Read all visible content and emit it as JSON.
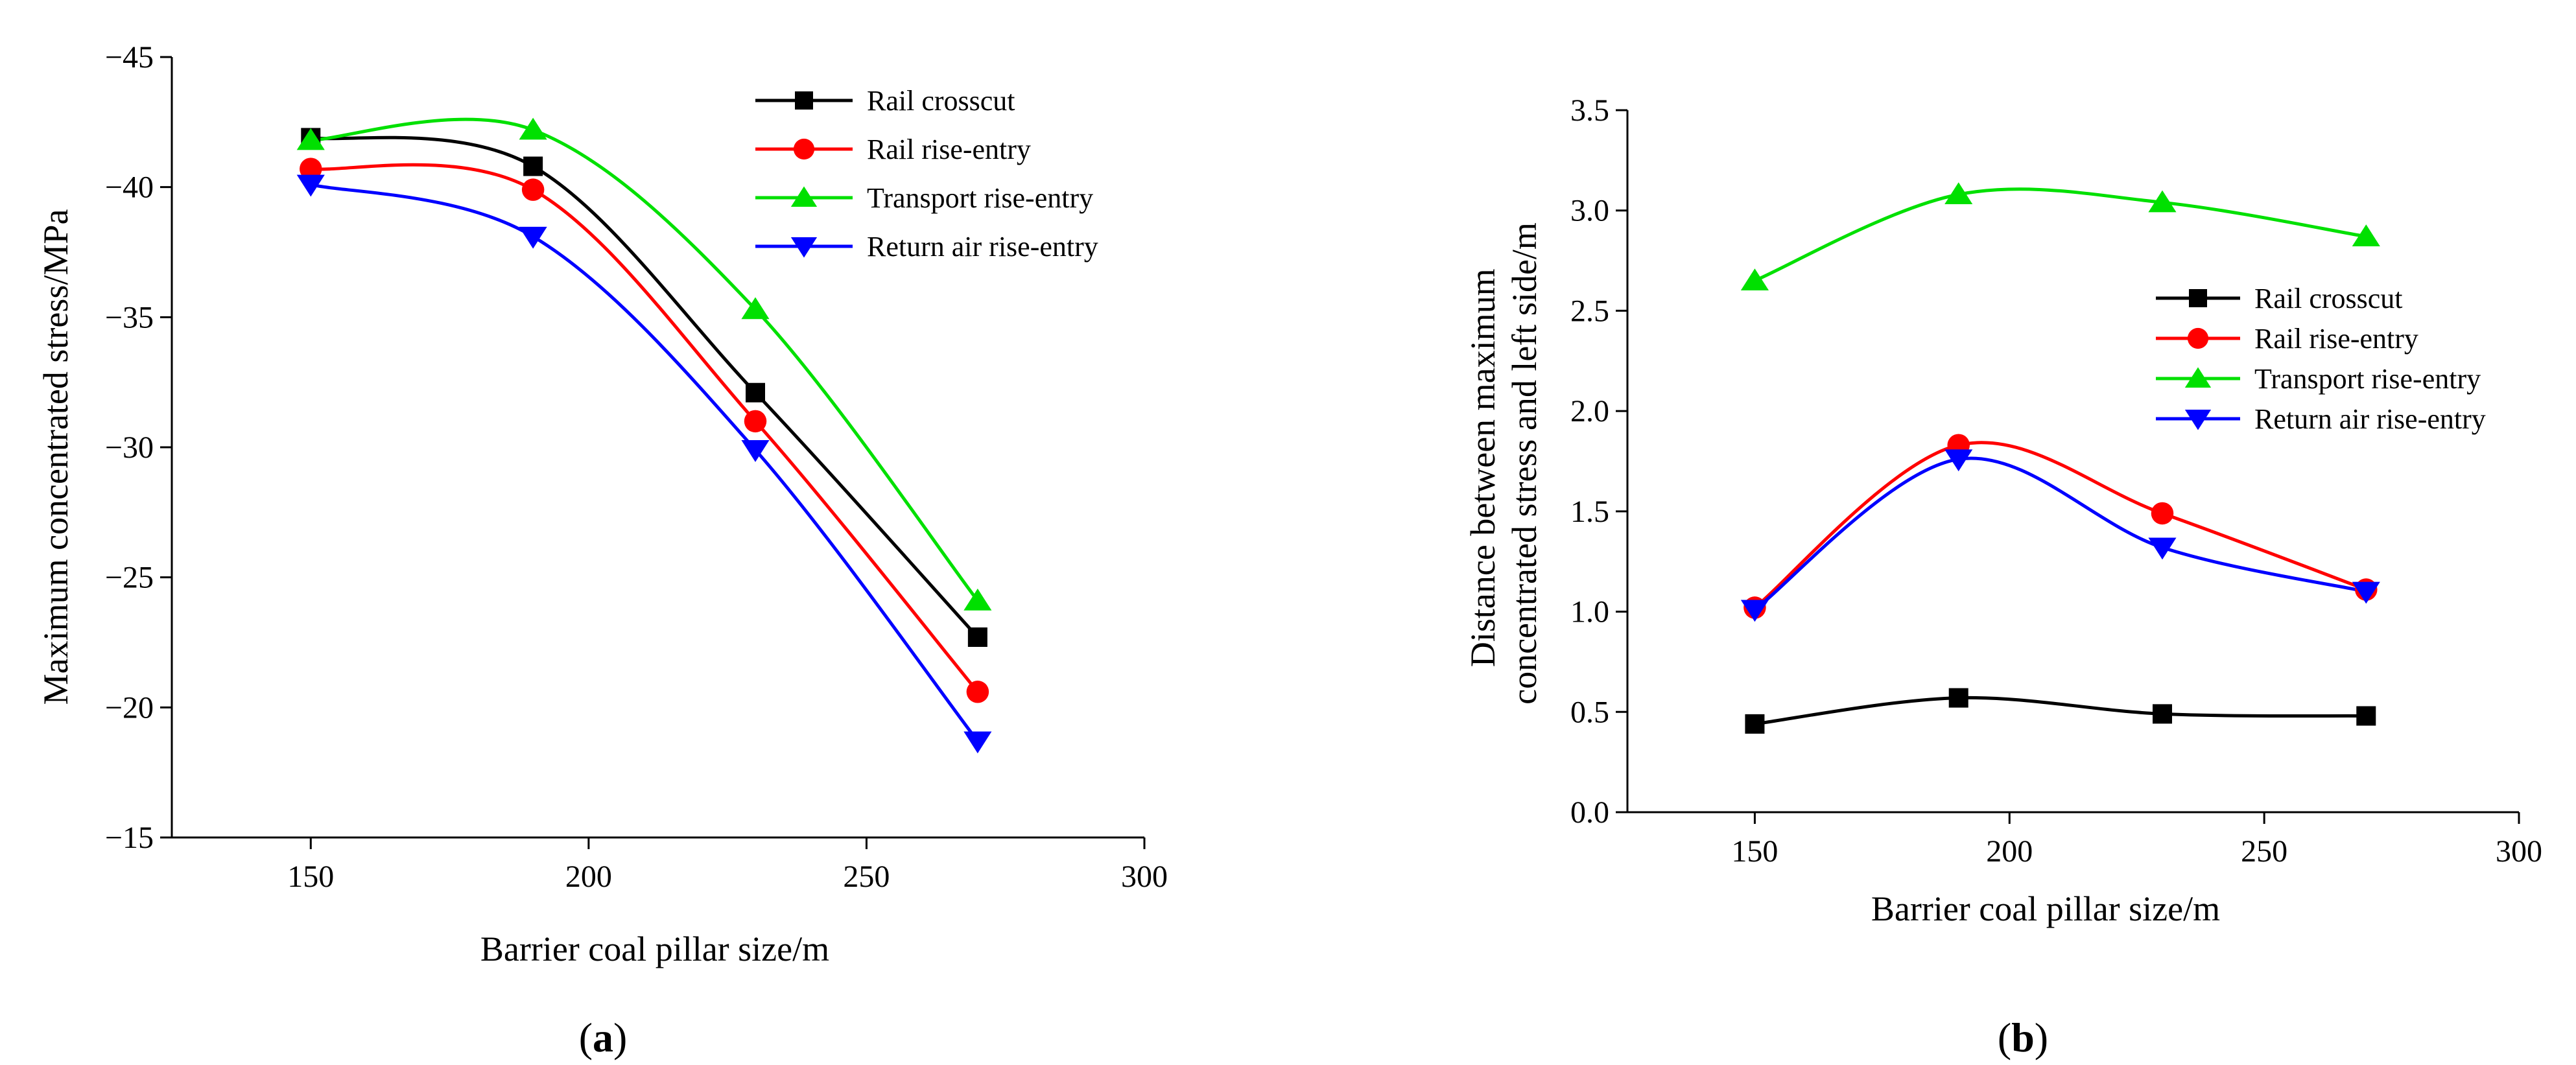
{
  "chart_data": [
    {
      "type": "line",
      "panel_label": "a",
      "xlabel": "Barrier coal pillar size/m",
      "ylabel": "Maximum concentrated stress/MPa",
      "xlim": [
        125,
        300
      ],
      "ylim": [
        -45,
        -15
      ],
      "y_axis_inverted": true,
      "x_ticks": [
        150,
        200,
        250,
        300
      ],
      "y_ticks": [
        -45,
        -40,
        -35,
        -30,
        -25,
        -20,
        -15
      ],
      "x_tick_labels": [
        "150",
        "200",
        "250",
        "300"
      ],
      "y_tick_labels": [
        "−45",
        "−40",
        "−35",
        "−30",
        "−25",
        "−20",
        "−15"
      ],
      "grid": false,
      "legend_position": "top-right",
      "x": [
        150,
        190,
        230,
        270
      ],
      "series": [
        {
          "name": "Rail crosscut",
          "color": "#000000",
          "marker": "square",
          "values": [
            -41.9,
            -40.8,
            -32.1,
            -22.7
          ]
        },
        {
          "name": "Rail rise-entry",
          "color": "#ff0000",
          "marker": "circle",
          "values": [
            -40.7,
            -39.9,
            -31.0,
            -20.6
          ]
        },
        {
          "name": " Transport rise-entry",
          "color": "#00e000",
          "marker": "triangle-up",
          "values": [
            -41.8,
            -42.2,
            -35.3,
            -24.1
          ]
        },
        {
          "name": " Return air rise-entry",
          "color": "#0000ff",
          "marker": "triangle-down",
          "values": [
            -40.1,
            -38.1,
            -29.9,
            -18.7
          ]
        }
      ]
    },
    {
      "type": "line",
      "panel_label": "b",
      "xlabel": "Barrier coal pillar size/m",
      "ylabel_lines": [
        "Distance between maximum",
        "concentrated stress and left side/m"
      ],
      "xlim": [
        125,
        300
      ],
      "ylim": [
        0,
        3.5
      ],
      "x_ticks": [
        150,
        200,
        250,
        300
      ],
      "y_ticks": [
        0,
        0.5,
        1,
        1.5,
        2,
        2.5,
        3,
        3.5
      ],
      "x_tick_labels": [
        "150",
        "200",
        "250",
        "300"
      ],
      "y_tick_labels": [
        "0.0",
        "0.5",
        "1.0",
        "1.5",
        "2.0",
        "2.5",
        "3.0",
        "3.5"
      ],
      "grid": false,
      "legend_position": "right-middle",
      "x": [
        150,
        190,
        230,
        270
      ],
      "series": [
        {
          "name": "Rail crosscut",
          "color": "#000000",
          "marker": "square",
          "values": [
            0.44,
            0.57,
            0.49,
            0.48
          ]
        },
        {
          "name": "Rail rise-entry",
          "color": "#ff0000",
          "marker": "circle",
          "values": [
            1.02,
            1.83,
            1.49,
            1.11
          ]
        },
        {
          "name": "Transport rise-entry",
          "color": "#00e000",
          "marker": "triangle-up",
          "values": [
            2.65,
            3.08,
            3.04,
            2.87
          ]
        },
        {
          "name": "Return air rise-entry",
          "color": "#0000ff",
          "marker": "triangle-down",
          "values": [
            1.01,
            1.76,
            1.32,
            1.1
          ]
        }
      ]
    }
  ]
}
